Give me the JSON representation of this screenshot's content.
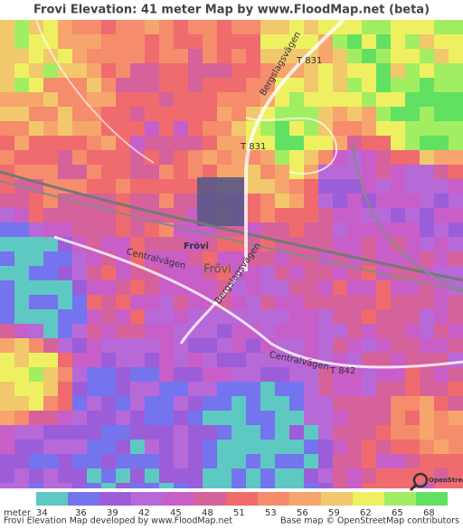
{
  "header": {
    "title": "Frovi Elevation: 41 meter Map by www.FloodMap.net (beta)"
  },
  "map": {
    "labels": [
      "Frövi",
      "Frövi",
      "Centralvägen",
      "Centralvägen",
      "Bergslagsvägen",
      "Bergslagsvägen",
      "T 831",
      "T 831",
      "T 842"
    ],
    "logo": "OpenStreetMap"
  },
  "legend": {
    "unit": "meter",
    "items": [
      {
        "value": 34,
        "color": "#5ec8c2"
      },
      {
        "value": 36,
        "color": "#7474ee"
      },
      {
        "value": 39,
        "color": "#9b5ed8"
      },
      {
        "value": 42,
        "color": "#b869d8"
      },
      {
        "value": 45,
        "color": "#c85ec8"
      },
      {
        "value": 48,
        "color": "#d6629c"
      },
      {
        "value": 51,
        "color": "#ef6b6e"
      },
      {
        "value": 53,
        "color": "#f58c6c"
      },
      {
        "value": 56,
        "color": "#f6a66c"
      },
      {
        "value": 59,
        "color": "#f2c86c"
      },
      {
        "value": 62,
        "color": "#eef062"
      },
      {
        "value": 65,
        "color": "#a2ee62"
      },
      {
        "value": 68,
        "color": "#62e062"
      }
    ]
  },
  "footer": {
    "credit": "Frovi Elevation Map developed by www.FloodMap.net",
    "attribution": "Base map © OpenStreetMap contributors"
  }
}
